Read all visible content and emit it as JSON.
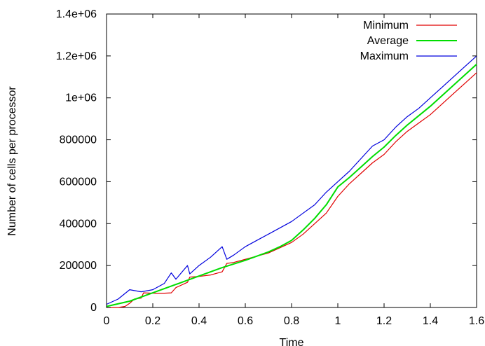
{
  "chart_data": {
    "type": "line",
    "title": "",
    "xlabel": "Time",
    "ylabel": "Number of cells per processor",
    "xlim": [
      0,
      1.6
    ],
    "ylim": [
      0,
      1400000
    ],
    "x_ticks": [
      0,
      0.2,
      0.4,
      0.6,
      0.8,
      1,
      1.2,
      1.4,
      1.6
    ],
    "x_tick_labels": [
      "0",
      "0.2",
      "0.4",
      "0.6",
      "0.8",
      "1",
      "1.2",
      "1.4",
      "1.6"
    ],
    "y_ticks": [
      0,
      200000,
      400000,
      600000,
      800000,
      1000000,
      1200000,
      1400000
    ],
    "y_tick_labels": [
      "0",
      "200000",
      "400000",
      "600000",
      "800000",
      "1e+06",
      "1.2e+06",
      "1.4e+06"
    ],
    "grid": false,
    "legend_position": "top-right",
    "series": [
      {
        "name": "Minimum",
        "color": "#e00000",
        "x": [
          0,
          0.05,
          0.08,
          0.1,
          0.12,
          0.15,
          0.16,
          0.2,
          0.25,
          0.28,
          0.3,
          0.35,
          0.36,
          0.4,
          0.45,
          0.5,
          0.52,
          0.55,
          0.6,
          0.65,
          0.7,
          0.75,
          0.8,
          0.85,
          0.9,
          0.95,
          1.0,
          1.05,
          1.1,
          1.15,
          1.2,
          1.25,
          1.3,
          1.35,
          1.4,
          1.45,
          1.5,
          1.55,
          1.6
        ],
        "y": [
          0,
          0,
          5000,
          20000,
          40000,
          45000,
          70000,
          68000,
          68000,
          70000,
          95000,
          120000,
          145000,
          148000,
          155000,
          170000,
          210000,
          215000,
          230000,
          245000,
          260000,
          285000,
          310000,
          350000,
          400000,
          450000,
          530000,
          590000,
          640000,
          690000,
          730000,
          790000,
          840000,
          880000,
          920000,
          970000,
          1020000,
          1070000,
          1120000
        ]
      },
      {
        "name": "Average",
        "color": "#00dd00",
        "x": [
          0,
          0.1,
          0.2,
          0.3,
          0.4,
          0.5,
          0.6,
          0.7,
          0.75,
          0.8,
          0.85,
          0.9,
          0.95,
          1.0,
          1.05,
          1.1,
          1.15,
          1.2,
          1.25,
          1.3,
          1.35,
          1.4,
          1.45,
          1.5,
          1.55,
          1.6
        ],
        "y": [
          5000,
          30000,
          70000,
          110000,
          150000,
          190000,
          225000,
          265000,
          290000,
          320000,
          370000,
          425000,
          490000,
          575000,
          620000,
          670000,
          720000,
          765000,
          820000,
          870000,
          915000,
          960000,
          1010000,
          1060000,
          1110000,
          1160000
        ]
      },
      {
        "name": "Maximum",
        "color": "#0000dd",
        "x": [
          0,
          0.05,
          0.1,
          0.15,
          0.2,
          0.25,
          0.28,
          0.3,
          0.35,
          0.36,
          0.4,
          0.45,
          0.5,
          0.52,
          0.55,
          0.6,
          0.65,
          0.7,
          0.75,
          0.8,
          0.85,
          0.9,
          0.95,
          1.0,
          1.05,
          1.1,
          1.15,
          1.2,
          1.25,
          1.3,
          1.35,
          1.4,
          1.45,
          1.5,
          1.55,
          1.6
        ],
        "y": [
          15000,
          40000,
          85000,
          75000,
          85000,
          115000,
          165000,
          135000,
          200000,
          160000,
          200000,
          240000,
          290000,
          230000,
          250000,
          290000,
          320000,
          350000,
          380000,
          410000,
          450000,
          490000,
          550000,
          600000,
          650000,
          710000,
          770000,
          800000,
          860000,
          910000,
          950000,
          1000000,
          1050000,
          1100000,
          1150000,
          1200000
        ]
      }
    ]
  }
}
